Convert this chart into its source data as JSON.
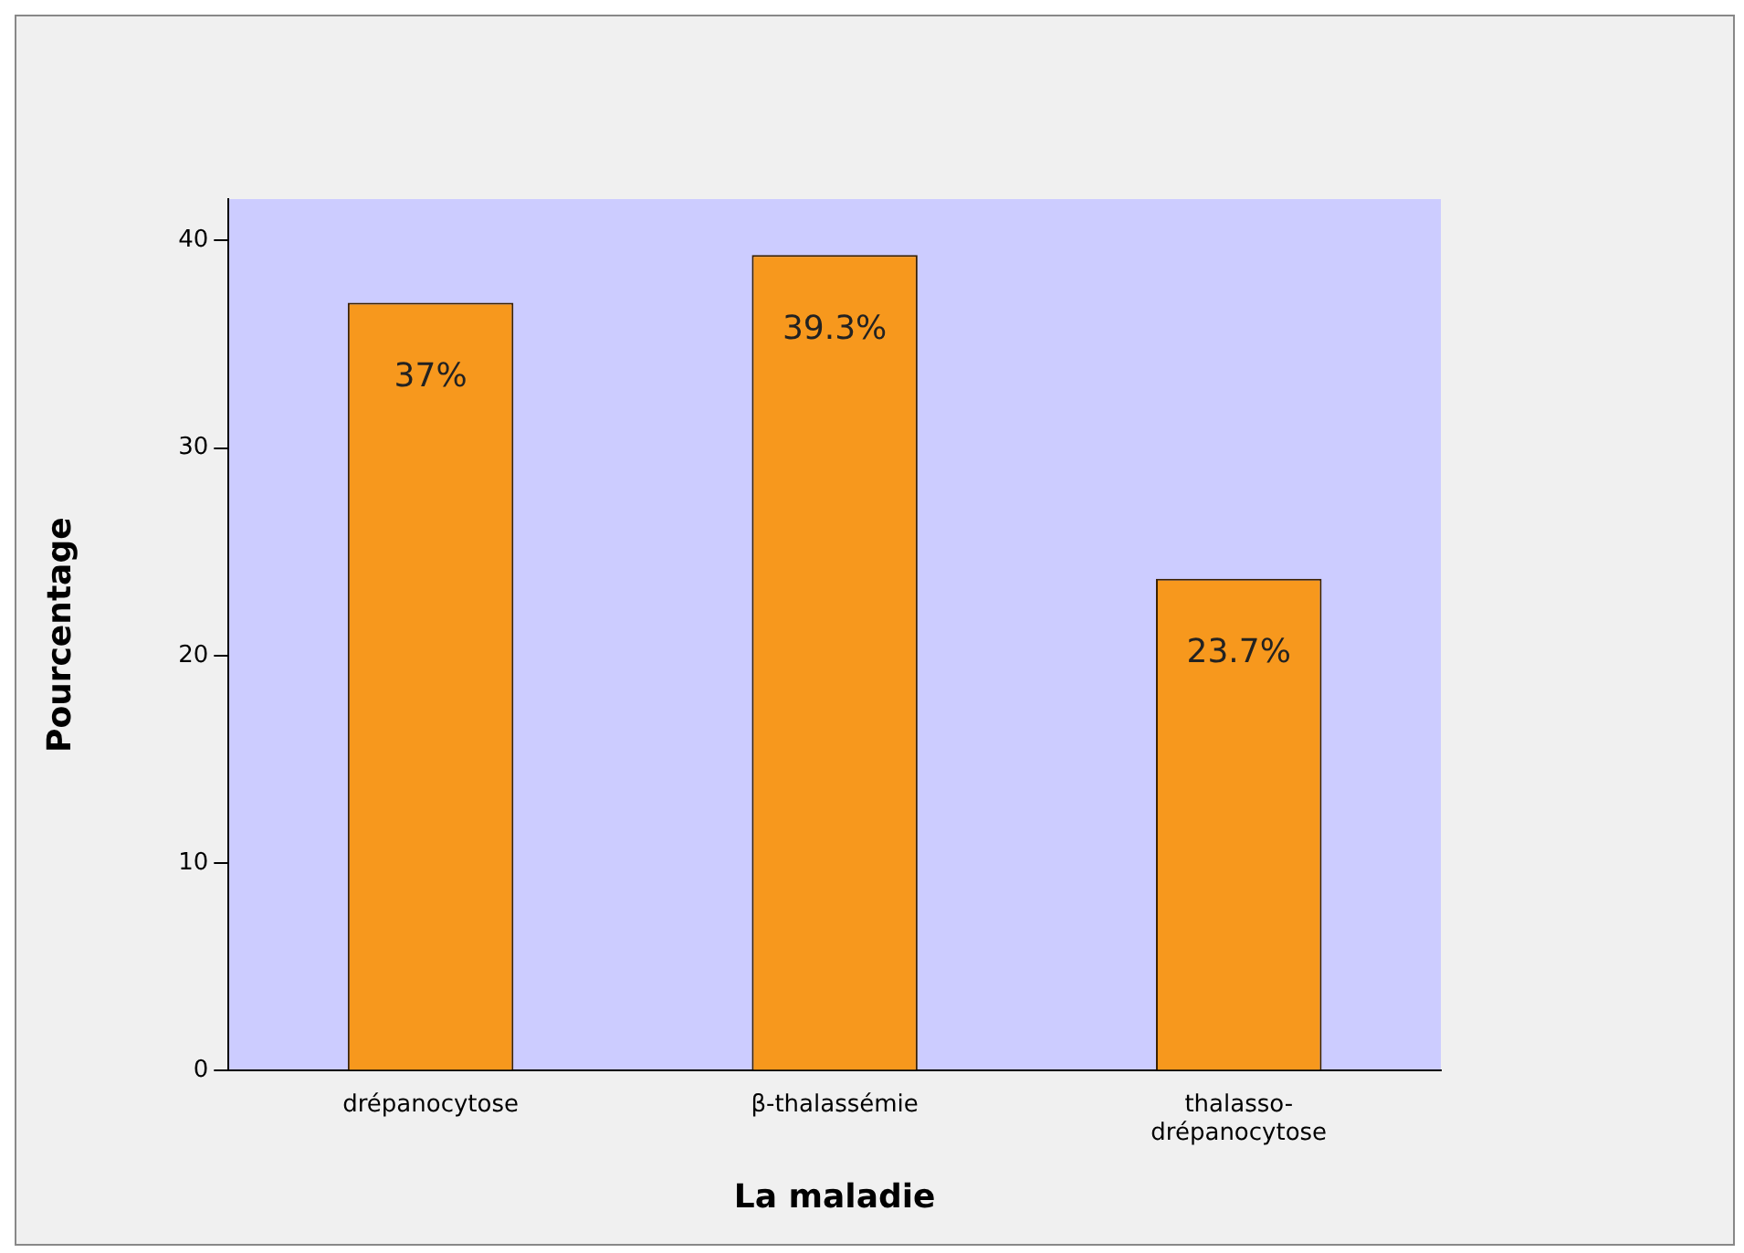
{
  "chart_data": {
    "type": "bar",
    "xlabel": "La maladie",
    "ylabel": "Pourcentage",
    "categories": [
      "drépanocytose",
      "β-thalassémie",
      "thalasso-drépanocytose"
    ],
    "values": [
      37,
      39.3,
      23.7
    ],
    "color": "#f7981d",
    "value_labels": [
      "37%",
      "39.3%",
      "23.7%"
    ],
    "ylim": [
      0,
      42
    ],
    "yticks": [
      0,
      10,
      20,
      30,
      40
    ],
    "grid": false,
    "legend": false
  }
}
